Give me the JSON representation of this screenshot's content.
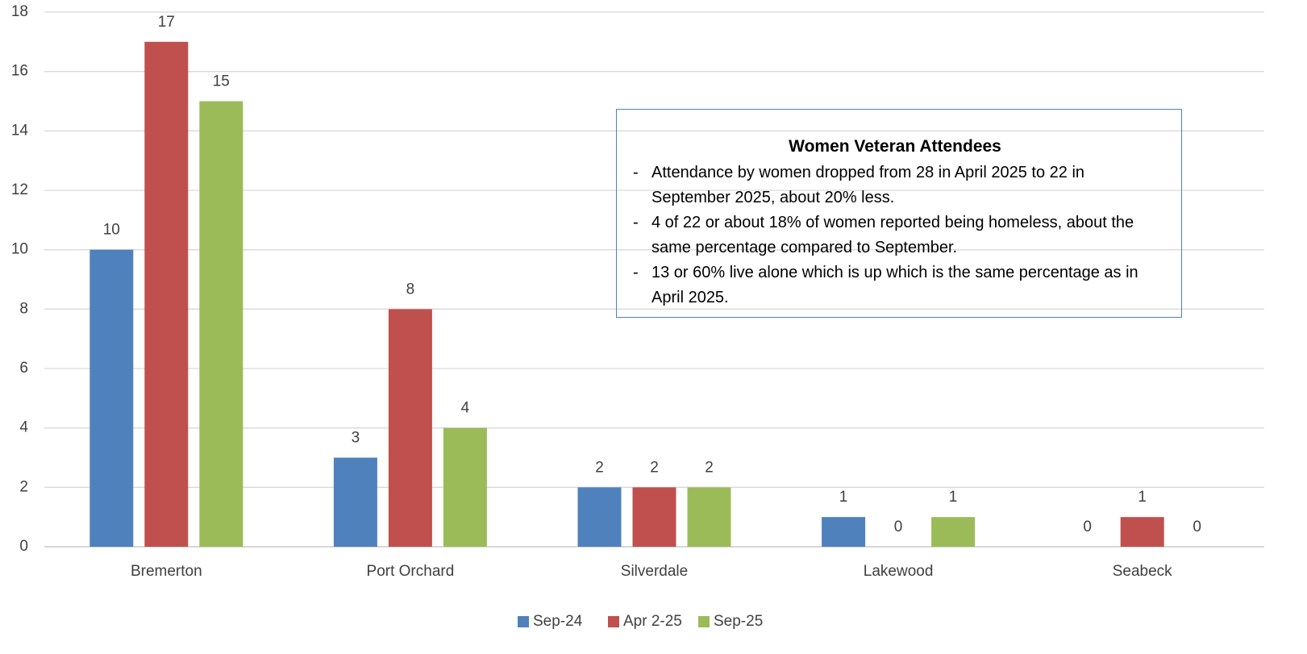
{
  "chart_data": {
    "type": "bar",
    "categories": [
      "Bremerton",
      "Port Orchard",
      "Silverdale",
      "Lakewood",
      "Seabeck"
    ],
    "series": [
      {
        "name": "Sep-24",
        "color": "#4f81bd",
        "values": [
          10,
          3,
          2,
          1,
          0
        ]
      },
      {
        "name": "Apr 2-25",
        "color": "#c0504d",
        "values": [
          17,
          8,
          2,
          0,
          1
        ]
      },
      {
        "name": "Sep-25",
        "color": "#9bbb59",
        "values": [
          15,
          4,
          2,
          1,
          0
        ]
      }
    ],
    "ylim": [
      0,
      18
    ],
    "yticks": [
      0,
      2,
      4,
      6,
      8,
      10,
      12,
      14,
      16,
      18
    ],
    "grid": true,
    "legend": "bottom",
    "annotation": {
      "title": "Women Veteran Attendees",
      "bullets": [
        "Attendance by women dropped from 28 in April 2025 to 22 in September 2025, about 20% less.",
        "4 of 22 or about 18% of women reported being homeless, about the same percentage compared to September.",
        "13 or 60% live alone which is up which is the same percentage as in April 2025."
      ]
    }
  }
}
